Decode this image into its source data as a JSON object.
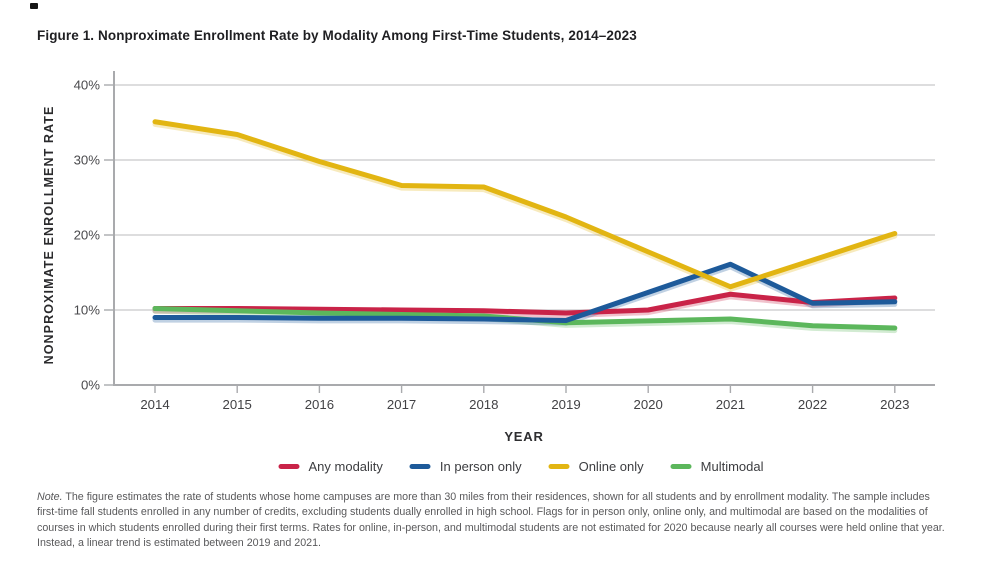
{
  "title": "Figure 1. Nonproximate Enrollment Rate by Modality Among First-Time Students, 2014–2023",
  "note": {
    "label": "Note.",
    "text": " The figure estimates the rate of students whose home campuses are more than 30 miles from their residences, shown for all students and by enrollment modality. The sample includes first-time fall students enrolled in any number of credits, excluding students dually enrolled in high school. Flags for in person only, online only, and multimodal are based on the modalities of courses in which students enrolled during their first terms. Rates for online, in-person, and multimodal students are not estimated for 2020 because nearly all courses were held online that year. Instead, a linear trend is estimated between 2019 and 2021."
  },
  "chart_data": {
    "type": "line",
    "title": "Figure 1. Nonproximate Enrollment Rate by Modality Among First-Time Students, 2014–2023",
    "xlabel": "YEAR",
    "ylabel": "NONPROXIMATE ENROLLMENT RATE",
    "categories": [
      "2014",
      "2015",
      "2016",
      "2017",
      "2018",
      "2019",
      "2020",
      "2021",
      "2022",
      "2023"
    ],
    "yticks": [
      0,
      10,
      20,
      30,
      40
    ],
    "ytick_suffix": "%",
    "ylim": [
      0,
      42
    ],
    "grid": "horizontal",
    "legend_position": "bottom",
    "series": [
      {
        "name": "Any modality",
        "color": "#c92348",
        "values": [
          10.2,
          10.2,
          10.1,
          10.0,
          9.9,
          9.6,
          10.0,
          12.1,
          11.0,
          11.6
        ]
      },
      {
        "name": "In person only",
        "color": "#1d5a9a",
        "values": [
          9.0,
          9.0,
          8.9,
          8.9,
          8.8,
          8.6,
          12.35,
          16.1,
          10.9,
          11.1
        ]
      },
      {
        "name": "Online only",
        "color": "#e2b512",
        "values": [
          35.1,
          33.4,
          29.8,
          26.6,
          26.4,
          22.4,
          17.75,
          13.1,
          16.65,
          20.2
        ]
      },
      {
        "name": "Multimodal",
        "color": "#5cb75c",
        "values": [
          10.2,
          9.9,
          9.6,
          9.4,
          9.2,
          8.3,
          8.55,
          8.8,
          7.9,
          7.6
        ]
      }
    ],
    "colors": {
      "grid": "#d2d2d4",
      "axis": "#a9aaad"
    }
  }
}
